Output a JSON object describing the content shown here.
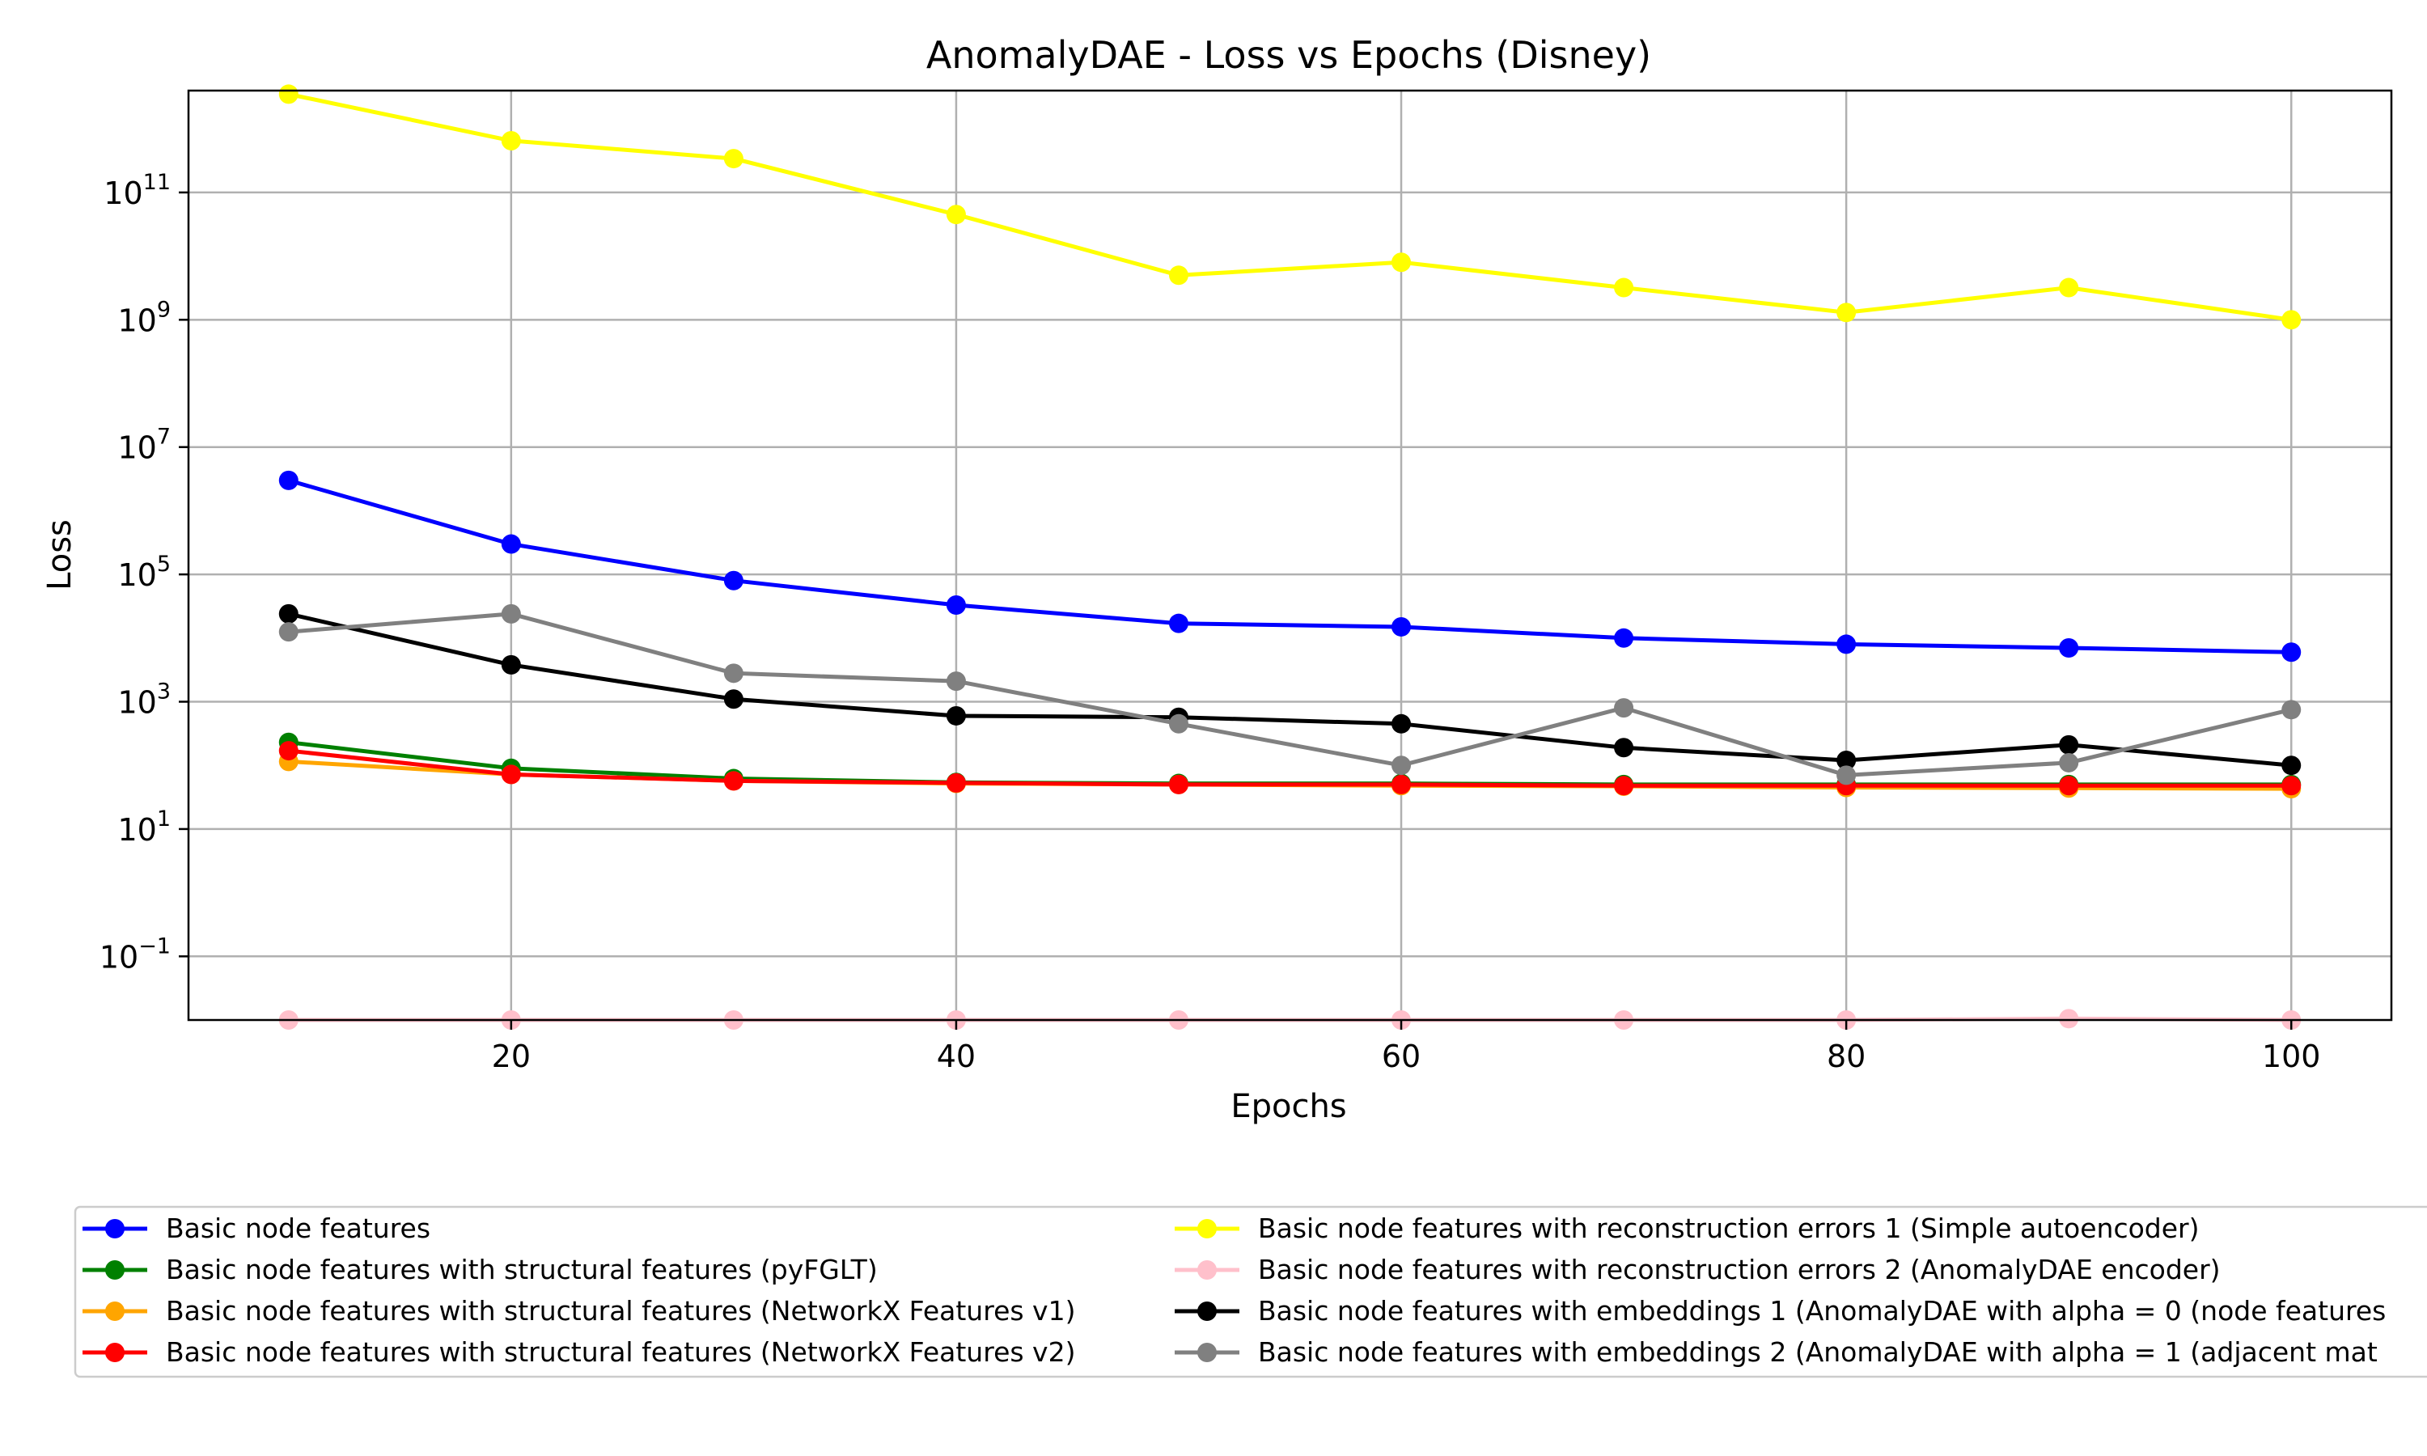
{
  "chart_data": {
    "type": "line",
    "title": "AnomalyDAE - Loss vs Epochs (Disney)",
    "xlabel": "Epochs",
    "ylabel": "Loss",
    "y_scale": "log",
    "xlim": [
      5.5,
      104.5
    ],
    "ylim_exponent": [
      -2.0,
      12.6
    ],
    "x_ticks": [
      20,
      40,
      60,
      80,
      100
    ],
    "y_ticks": [
      {
        "base": "10",
        "exp": "−1",
        "value": 0.1
      },
      {
        "base": "10",
        "exp": "1",
        "value": 10
      },
      {
        "base": "10",
        "exp": "3",
        "value": 1000
      },
      {
        "base": "10",
        "exp": "5",
        "value": 100000
      },
      {
        "base": "10",
        "exp": "7",
        "value": 10000000
      },
      {
        "base": "10",
        "exp": "9",
        "value": 1000000000
      },
      {
        "base": "10",
        "exp": "11",
        "value": 100000000000
      }
    ],
    "grid": true,
    "legend_placement": "below chart, two columns",
    "x": [
      10,
      20,
      30,
      40,
      50,
      60,
      70,
      80,
      90,
      100
    ],
    "series": [
      {
        "name": "Basic node features",
        "color": "#0000ff",
        "values": [
          3000000,
          300000,
          80000,
          33000,
          17000,
          15000,
          10000,
          8000,
          7000,
          6000
        ]
      },
      {
        "name": "Basic node features with structural features (pyFGLT)",
        "color": "#008000",
        "values": [
          230,
          90,
          62,
          54,
          52,
          52,
          50,
          50,
          50,
          50
        ]
      },
      {
        "name": "Basic node features with structural features (NetworkX Features v1)",
        "color": "#ffa500",
        "values": [
          115,
          72,
          57,
          52,
          50,
          48,
          47,
          45,
          44,
          43
        ]
      },
      {
        "name": "Basic node features with structural features (NetworkX Features v2)",
        "color": "#ff0000",
        "values": [
          170,
          72,
          57,
          53,
          50,
          50,
          48,
          48,
          48,
          48
        ]
      },
      {
        "name": "Basic node features with reconstruction errors 1 (Simple autoencoder)",
        "color": "#ffff00",
        "values": [
          3500000000000,
          650000000000,
          340000000000,
          45000000000,
          5000000000,
          8000000000,
          3200000000,
          1300000000,
          3200000000,
          1000000000
        ]
      },
      {
        "name": "Basic node features with reconstruction errors 2 (AnomalyDAE encoder)",
        "color": "#ffc0cb",
        "values": [
          0.01,
          0.01,
          0.01,
          0.01,
          0.01,
          0.01,
          0.01,
          0.01,
          0.0105,
          0.01
        ]
      },
      {
        "name": "Basic node features with embeddings 1 (AnomalyDAE with alpha = 0 (node features",
        "color": "#000000",
        "values": [
          24000,
          3800,
          1100,
          600,
          570,
          450,
          190,
          120,
          210,
          100
        ]
      },
      {
        "name": "Basic node features with embeddings 2 (AnomalyDAE with alpha = 1 (adjacent mat",
        "color": "#808080",
        "values": [
          12500,
          24000,
          2800,
          2100,
          450,
          100,
          800,
          70,
          110,
          750
        ]
      }
    ]
  }
}
